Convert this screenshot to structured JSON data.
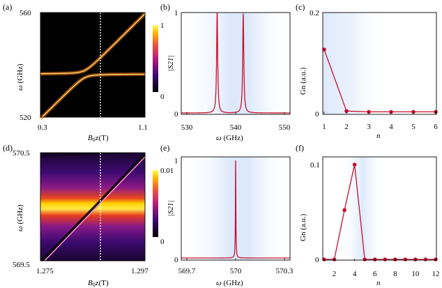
{
  "colors": {
    "curve": "#c8102e",
    "marker": "#c8102e",
    "highlight": "#dde9fb"
  },
  "panels": {
    "a": {
      "label": "(a)",
      "ytop": "560",
      "ybottom": "520",
      "xleft": "0.3",
      "xright": "1.1",
      "xlabel_b": "B",
      "xlabel_sub": "0",
      "xlabel_rest": "z(T)",
      "ylabel_w": "ω",
      "ylabel_rest": " (GHz)",
      "colorbar": {
        "top": "1",
        "bottom": "0",
        "label": "|S21|"
      }
    },
    "b": {
      "label": "(b)",
      "ytop": "1",
      "ybottom": "0",
      "x_ticks": [
        "530",
        "540",
        "550"
      ],
      "xlabel_w": "ω",
      "xlabel_rest": " (GHz)"
    },
    "c": {
      "label": "(c)",
      "ytop": "0.2",
      "ybottom": "0",
      "x_ticks": [
        "1",
        "2",
        "3",
        "4",
        "5",
        "6"
      ],
      "xlabel": "n",
      "ylabel": "Gn (a.u.)"
    },
    "d": {
      "label": "(d)",
      "ytop": "570.5",
      "ybottom": "569.5",
      "xleft": "1.275",
      "xright": "1.297",
      "xlabel_b": "B",
      "xlabel_sub": "0",
      "xlabel_rest": "z(T)",
      "ylabel_w": "ω",
      "ylabel_rest": " (GHz)",
      "colorbar": {
        "top": "0.01",
        "bottom": "0",
        "label": "|S21|"
      }
    },
    "e": {
      "label": "(e)",
      "ytop": "1",
      "ybottom": "0",
      "x_ticks": [
        "569.7",
        "570",
        "570.3"
      ],
      "xlabel_w": "ω",
      "xlabel_rest": " (GHz)"
    },
    "f": {
      "label": "(f)",
      "ytop": "0.1",
      "ybottom": "0",
      "x_ticks": [
        "2",
        "4",
        "6",
        "8",
        "10",
        "12"
      ],
      "xlabel": "n",
      "ylabel": "Gn (a.u.)"
    }
  },
  "chart_data": [
    {
      "type": "heatmap",
      "panel": "a",
      "xlim": [
        0.3,
        1.1
      ],
      "ylim": [
        520,
        560
      ],
      "description_values": {
        "cut_x": 0.6,
        "mode_upper_left_ghz": 537,
        "mode_lower_right_ghz": 536
      }
    },
    {
      "type": "line",
      "panel": "b",
      "xlim": [
        530,
        550
      ],
      "ylim": [
        0,
        1
      ],
      "peaks": [
        {
          "x": 536.6,
          "y": 1.0
        },
        {
          "x": 541.4,
          "y": 0.99
        }
      ],
      "width": 0.12
    },
    {
      "type": "line",
      "panel": "c",
      "x": [
        1,
        2,
        3,
        4,
        5,
        6
      ],
      "values": [
        0.155,
        0.003,
        0.001,
        0.001,
        0.001,
        0.001
      ],
      "ylim": [
        0,
        0.2
      ],
      "xlim": [
        1,
        6
      ]
    },
    {
      "type": "heatmap",
      "panel": "d",
      "xlim": [
        1.275,
        1.297
      ],
      "ylim": [
        569.5,
        570.5
      ],
      "description_values": {
        "cut_x": 1.2855,
        "mode_flat_ghz": 570.0
      }
    },
    {
      "type": "line",
      "panel": "e",
      "xlim": [
        569.7,
        570.3
      ],
      "ylim": [
        0,
        1
      ],
      "peaks": [
        {
          "x": 570.0,
          "y": 1.0
        }
      ],
      "width": 0.0015
    },
    {
      "type": "line",
      "panel": "f",
      "x": [
        1,
        2,
        3,
        4,
        5,
        6,
        7,
        8,
        9,
        10,
        11,
        12
      ],
      "values": [
        0,
        0,
        0.052,
        0.1,
        0,
        0,
        0,
        0,
        0,
        0,
        0,
        0
      ],
      "ylim": [
        0,
        0.1
      ],
      "xlim": [
        1,
        12
      ]
    }
  ]
}
